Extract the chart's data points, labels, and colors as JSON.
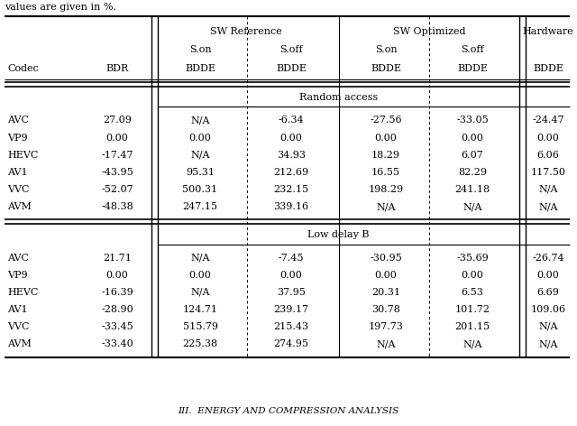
{
  "top_text": "values are given in %.",
  "bottom_text": "III.  EΝERGY AND CΟMPRESSIΟN AΝALYSIS",
  "section1_label": "Random access",
  "section1_data": [
    [
      "AVC",
      "27.09",
      "N/A",
      "-6.34",
      "-27.56",
      "-33.05",
      "-24.47"
    ],
    [
      "VP9",
      "0.00",
      "0.00",
      "0.00",
      "0.00",
      "0.00",
      "0.00"
    ],
    [
      "HEVC",
      "-17.47",
      "N/A",
      "34.93",
      "18.29",
      "6.07",
      "6.06"
    ],
    [
      "AV1",
      "-43.95",
      "95.31",
      "212.69",
      "16.55",
      "82.29",
      "117.50"
    ],
    [
      "VVC",
      "-52.07",
      "500.31",
      "232.15",
      "198.29",
      "241.18",
      "N/A"
    ],
    [
      "AVM",
      "-48.38",
      "247.15",
      "339.16",
      "N/A",
      "N/A",
      "N/A"
    ]
  ],
  "section2_label": "Low delay B",
  "section2_data": [
    [
      "AVC",
      "21.71",
      "N/A",
      "-7.45",
      "-30.95",
      "-35.69",
      "-26.74"
    ],
    [
      "VP9",
      "0.00",
      "0.00",
      "0.00",
      "0.00",
      "0.00",
      "0.00"
    ],
    [
      "HEVC",
      "-16.39",
      "N/A",
      "37.95",
      "20.31",
      "6.53",
      "6.69"
    ],
    [
      "AV1",
      "-28.90",
      "124.71",
      "239.17",
      "30.78",
      "101.72",
      "109.06"
    ],
    [
      "VVC",
      "-33.45",
      "515.79",
      "215.43",
      "197.73",
      "201.15",
      "N/A"
    ],
    [
      "AVM",
      "-33.40",
      "225.38",
      "274.95",
      "N/A",
      "N/A",
      "N/A"
    ]
  ],
  "font_size": 8.0,
  "font_family": "DejaVu Serif",
  "bg_color": "#ffffff"
}
